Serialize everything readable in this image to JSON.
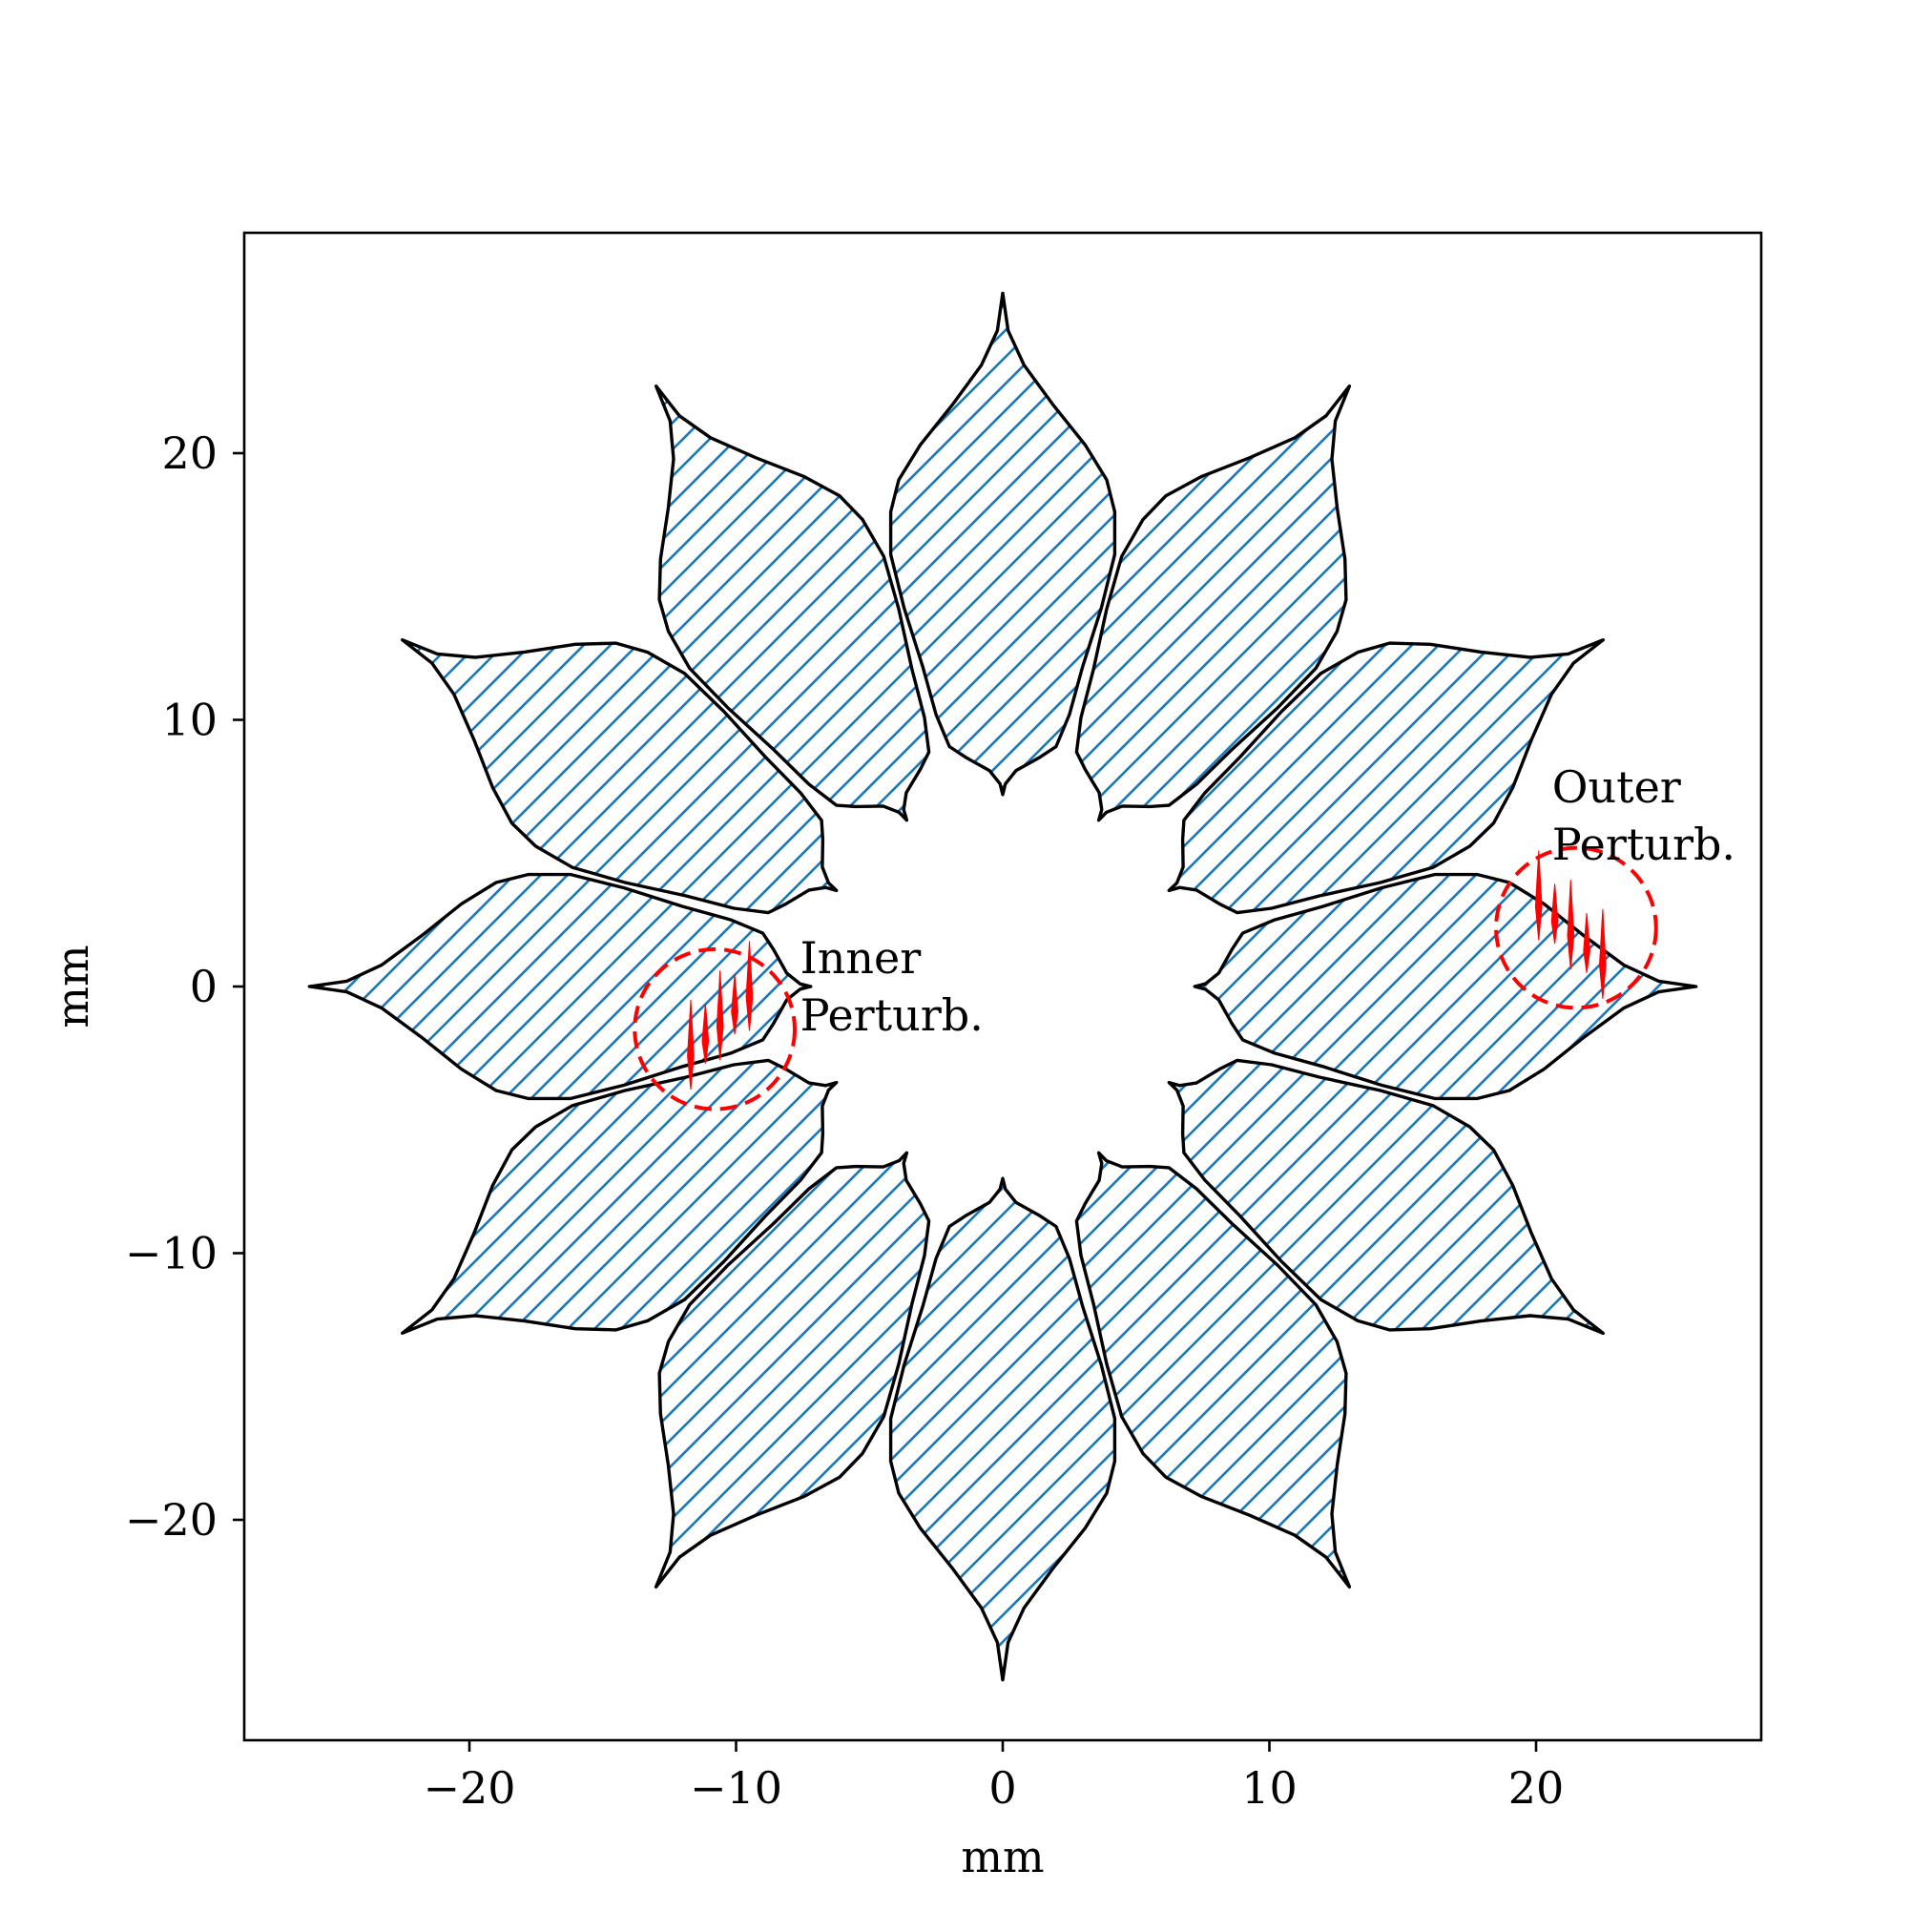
{
  "chart_data": {
    "type": "diagram",
    "xlabel": "mm",
    "ylabel": "mm",
    "xlim": [
      -28.5,
      28.5
    ],
    "ylim": [
      -28.5,
      28.5
    ],
    "xticks": [
      {
        "value": -20,
        "label": "−20"
      },
      {
        "value": -10,
        "label": "−10"
      },
      {
        "value": 0,
        "label": "0"
      },
      {
        "value": 10,
        "label": "10"
      },
      {
        "value": 20,
        "label": "20"
      }
    ],
    "yticks": [
      {
        "value": -20,
        "label": "−20"
      },
      {
        "value": -10,
        "label": "−10"
      },
      {
        "value": 0,
        "label": "0"
      },
      {
        "value": 10,
        "label": "10"
      },
      {
        "value": 20,
        "label": "20"
      }
    ],
    "petals": {
      "count": 12,
      "outline_color": "#000000",
      "hatch_color": "#1f77b4",
      "hatch_style": "diagonal"
    },
    "annotations": [
      {
        "lines": [
          "Inner",
          "Perturb."
        ],
        "circle_center": [
          -10.8,
          -1.6
        ],
        "circle_radius": 3.0,
        "text_at": [
          -7.6,
          0.5
        ]
      },
      {
        "lines": [
          "Outer",
          "Perturb."
        ],
        "circle_center": [
          21.5,
          2.2
        ],
        "circle_radius": 3.0,
        "text_at": [
          20.6,
          6.9
        ]
      }
    ],
    "perturbation_color": "#ff0000",
    "grid": false,
    "legend": false
  }
}
